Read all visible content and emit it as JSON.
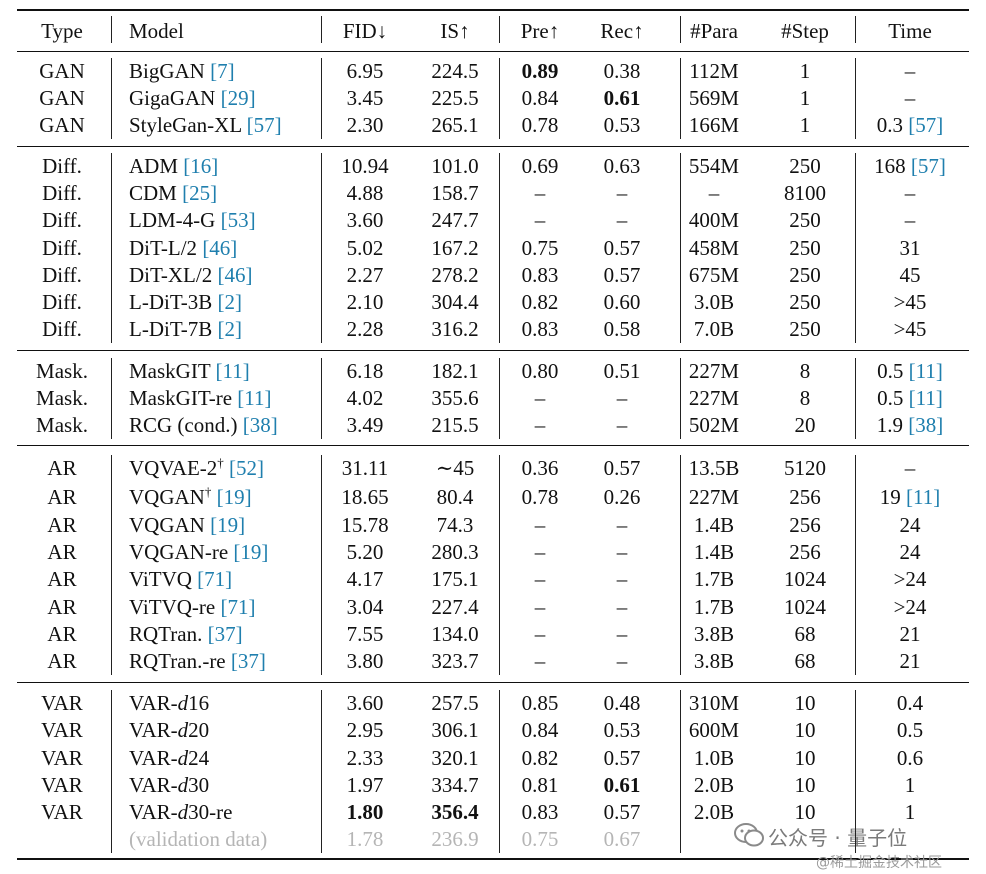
{
  "header": {
    "type": "Type",
    "model": "Model",
    "fid": "FID↓",
    "is": "IS↑",
    "pre": "Pre↑",
    "rec": "Rec↑",
    "para": "#Para",
    "step": "#Step",
    "time": "Time"
  },
  "rows": [
    {
      "type": "GAN",
      "model": "BigGAN ",
      "ref": "[7]",
      "fid": "6.95",
      "is": "224.5",
      "pre": "0.89",
      "rec": "0.38",
      "para": "112M",
      "step": "1",
      "time": "–"
    },
    {
      "type": "GAN",
      "model": "GigaGAN ",
      "ref": "[29]",
      "fid": "3.45",
      "is": "225.5",
      "pre": "0.84",
      "rec": "0.61",
      "para": "569M",
      "step": "1",
      "time": "–"
    },
    {
      "type": "GAN",
      "model": "StyleGan-XL ",
      "ref": "[57]",
      "fid": "2.30",
      "is": "265.1",
      "pre": "0.78",
      "rec": "0.53",
      "para": "166M",
      "step": "1",
      "time": "0.3 ",
      "time_ref": "[57]"
    },
    {
      "type": "Diff.",
      "model": "ADM ",
      "ref": "[16]",
      "fid": "10.94",
      "is": "101.0",
      "pre": "0.69",
      "rec": "0.63",
      "para": "554M",
      "step": "250",
      "time": "168 ",
      "time_ref": "[57]"
    },
    {
      "type": "Diff.",
      "model": "CDM ",
      "ref": "[25]",
      "fid": "4.88",
      "is": "158.7",
      "pre": "–",
      "rec": "–",
      "para": "–",
      "step": "8100",
      "time": "–"
    },
    {
      "type": "Diff.",
      "model": "LDM-4-G ",
      "ref": "[53]",
      "fid": "3.60",
      "is": "247.7",
      "pre": "–",
      "rec": "–",
      "para": "400M",
      "step": "250",
      "time": "–"
    },
    {
      "type": "Diff.",
      "model": "DiT-L/2 ",
      "ref": "[46]",
      "fid": "5.02",
      "is": "167.2",
      "pre": "0.75",
      "rec": "0.57",
      "para": "458M",
      "step": "250",
      "time": "31"
    },
    {
      "type": "Diff.",
      "model": "DiT-XL/2 ",
      "ref": "[46]",
      "fid": "2.27",
      "is": "278.2",
      "pre": "0.83",
      "rec": "0.57",
      "para": "675M",
      "step": "250",
      "time": "45"
    },
    {
      "type": "Diff.",
      "model": "L-DiT-3B ",
      "ref": "[2]",
      "fid": "2.10",
      "is": "304.4",
      "pre": "0.82",
      "rec": "0.60",
      "para": "3.0B",
      "step": "250",
      "time": ">45"
    },
    {
      "type": "Diff.",
      "model": "L-DiT-7B ",
      "ref": "[2]",
      "fid": "2.28",
      "is": "316.2",
      "pre": "0.83",
      "rec": "0.58",
      "para": "7.0B",
      "step": "250",
      "time": ">45"
    },
    {
      "type": "Mask.",
      "model": "MaskGIT ",
      "ref": "[11]",
      "fid": "6.18",
      "is": "182.1",
      "pre": "0.80",
      "rec": "0.51",
      "para": "227M",
      "step": "8",
      "time": "0.5 ",
      "time_ref": "[11]"
    },
    {
      "type": "Mask.",
      "model": "MaskGIT-re ",
      "ref": "[11]",
      "fid": "4.02",
      "is": "355.6",
      "pre": "–",
      "rec": "–",
      "para": "227M",
      "step": "8",
      "time": "0.5 ",
      "time_ref": "[11]"
    },
    {
      "type": "Mask.",
      "model": "RCG (cond.) ",
      "ref": "[38]",
      "fid": "3.49",
      "is": "215.5",
      "pre": "–",
      "rec": "–",
      "para": "502M",
      "step": "20",
      "time": "1.9 ",
      "time_ref": "[38]"
    },
    {
      "type": "AR",
      "model": "VQVAE-2",
      "sup": "†",
      "ref": "[52]",
      "fid": "31.11",
      "is": "∼45",
      "pre": "0.36",
      "rec": "0.57",
      "para": "13.5B",
      "step": "5120",
      "time": "–"
    },
    {
      "type": "AR",
      "model": "VQGAN",
      "sup": "†",
      "ref": "[19]",
      "fid": "18.65",
      "is": "80.4",
      "pre": "0.78",
      "rec": "0.26",
      "para": "227M",
      "step": "256",
      "time": "19 ",
      "time_ref": "[11]"
    },
    {
      "type": "AR",
      "model": "VQGAN ",
      "ref": "[19]",
      "fid": "15.78",
      "is": "74.3",
      "pre": "–",
      "rec": "–",
      "para": "1.4B",
      "step": "256",
      "time": "24"
    },
    {
      "type": "AR",
      "model": "VQGAN-re ",
      "ref": "[19]",
      "fid": "5.20",
      "is": "280.3",
      "pre": "–",
      "rec": "–",
      "para": "1.4B",
      "step": "256",
      "time": "24"
    },
    {
      "type": "AR",
      "model": "ViTVQ ",
      "ref": "[71]",
      "fid": "4.17",
      "is": "175.1",
      "pre": "–",
      "rec": "–",
      "para": "1.7B",
      "step": "1024",
      "time": ">24"
    },
    {
      "type": "AR",
      "model": "ViTVQ-re ",
      "ref": "[71]",
      "fid": "3.04",
      "is": "227.4",
      "pre": "–",
      "rec": "–",
      "para": "1.7B",
      "step": "1024",
      "time": ">24"
    },
    {
      "type": "AR",
      "model": "RQTran. ",
      "ref": "[37]",
      "fid": "7.55",
      "is": "134.0",
      "pre": "–",
      "rec": "–",
      "para": "3.8B",
      "step": "68",
      "time": "21"
    },
    {
      "type": "AR",
      "model": "RQTran.-re ",
      "ref": "[37]",
      "fid": "3.80",
      "is": "323.7",
      "pre": "–",
      "rec": "–",
      "para": "3.8B",
      "step": "68",
      "time": "21"
    },
    {
      "type": "VAR",
      "model": "VAR-",
      "ital": "d",
      "suffix": "16",
      "fid": "3.60",
      "is": "257.5",
      "pre": "0.85",
      "rec": "0.48",
      "para": "310M",
      "step": "10",
      "time": "0.4"
    },
    {
      "type": "VAR",
      "model": "VAR-",
      "ital": "d",
      "suffix": "20",
      "fid": "2.95",
      "is": "306.1",
      "pre": "0.84",
      "rec": "0.53",
      "para": "600M",
      "step": "10",
      "time": "0.5"
    },
    {
      "type": "VAR",
      "model": "VAR-",
      "ital": "d",
      "suffix": "24",
      "fid": "2.33",
      "is": "320.1",
      "pre": "0.82",
      "rec": "0.57",
      "para": "1.0B",
      "step": "10",
      "time": "0.6"
    },
    {
      "type": "VAR",
      "model": "VAR-",
      "ital": "d",
      "suffix": "30",
      "fid": "1.97",
      "is": "334.7",
      "pre": "0.81",
      "rec": "0.61",
      "para": "2.0B",
      "step": "10",
      "time": "1"
    },
    {
      "type": "VAR",
      "model": "VAR-",
      "ital": "d",
      "suffix": "30-re",
      "fid": "1.80",
      "is": "356.4",
      "pre": "0.83",
      "rec": "0.57",
      "para": "2.0B",
      "step": "10",
      "time": "1"
    },
    {
      "type": "",
      "model": "(validation data)",
      "fid": "1.78",
      "is": "236.9",
      "pre": "0.75",
      "rec": "0.67",
      "para": "",
      "step": "",
      "time": ""
    }
  ],
  "bold_cells": [
    {
      "row": 0,
      "col": "pre"
    },
    {
      "row": 1,
      "col": "rec"
    },
    {
      "row": 24,
      "col": "rec"
    },
    {
      "row": 25,
      "col": "fid"
    },
    {
      "row": 25,
      "col": "is"
    }
  ],
  "watermark": {
    "main": "公众号 · 量子位",
    "sub": "@稀土掘金技术社区"
  },
  "colors": {
    "reference": "#1f7fae",
    "validation": "#b5b5b5"
  }
}
